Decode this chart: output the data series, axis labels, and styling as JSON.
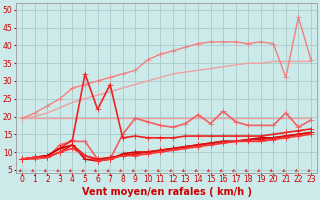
{
  "x": [
    0,
    1,
    2,
    3,
    4,
    5,
    6,
    7,
    8,
    9,
    10,
    11,
    12,
    13,
    14,
    15,
    16,
    17,
    18,
    19,
    20,
    21,
    22,
    23
  ],
  "background_color": "#cdeaea",
  "grid_color": "#aacccc",
  "xlabel": "Vent moyen/en rafales ( km/h )",
  "ylim": [
    4,
    52
  ],
  "yticks": [
    5,
    10,
    15,
    20,
    25,
    30,
    35,
    40,
    45,
    50
  ],
  "lines": [
    {
      "color": "#f0a0a0",
      "lw": 1.0,
      "marker": null,
      "values": [
        19.5,
        19.5,
        19.5,
        19.5,
        19.5,
        19.5,
        19.5,
        19.5,
        19.5,
        19.5,
        19.5,
        19.5,
        19.5,
        19.5,
        19.5,
        19.5,
        19.5,
        19.5,
        19.5,
        19.5,
        19.5,
        19.5,
        19.5,
        19.5
      ]
    },
    {
      "color": "#f0a0a0",
      "lw": 1.0,
      "marker": null,
      "values": [
        19.5,
        20,
        21,
        22.5,
        24,
        25,
        26,
        27,
        28,
        29,
        30,
        31,
        32,
        32.5,
        33,
        33.5,
        34,
        34.5,
        35,
        35,
        35.5,
        35.5,
        35.5,
        35.5
      ]
    },
    {
      "color": "#f08080",
      "lw": 1.0,
      "marker": "+",
      "markersize": 4,
      "values": [
        19.5,
        21,
        23,
        25,
        28,
        29,
        30,
        31,
        32,
        33,
        36,
        37.5,
        38.5,
        39.5,
        40.5,
        41,
        41,
        41,
        40.5,
        41,
        40.5,
        31,
        48,
        36
      ]
    },
    {
      "color": "#f06060",
      "lw": 1.2,
      "marker": "+",
      "markersize": 4,
      "values": [
        8,
        8,
        8.5,
        12,
        13,
        13,
        8,
        8,
        15,
        19.5,
        18.5,
        17.5,
        17,
        18,
        20.5,
        18,
        21.5,
        18.5,
        17.5,
        17.5,
        17.5,
        21,
        17,
        19
      ]
    },
    {
      "color": "#ee2222",
      "lw": 1.2,
      "marker": "+",
      "markersize": 4,
      "values": [
        8,
        8.5,
        9,
        11,
        13.5,
        32,
        22,
        29,
        14,
        14.5,
        14,
        14,
        14,
        14.5,
        14.5,
        14.5,
        14.5,
        14.5,
        14.5,
        14.5,
        15,
        15.5,
        16,
        16.5
      ]
    },
    {
      "color": "#cc0000",
      "lw": 1.2,
      "marker": "+",
      "markersize": 4,
      "values": [
        8,
        8.5,
        9,
        11,
        12,
        8,
        7.5,
        8,
        9.5,
        10,
        10,
        10.5,
        11,
        11.5,
        12,
        12.5,
        13,
        13,
        13.5,
        14,
        14,
        14.5,
        15,
        15.5
      ]
    },
    {
      "color": "#dd1111",
      "lw": 1.2,
      "marker": "+",
      "markersize": 4,
      "values": [
        8,
        8.5,
        8.5,
        10,
        12,
        9,
        8,
        8.5,
        9,
        9.5,
        10,
        10.5,
        11,
        11.5,
        12,
        12.5,
        13,
        13,
        13.5,
        13.5,
        14,
        14.5,
        15,
        15.5
      ]
    },
    {
      "color": "#ff3333",
      "lw": 1.2,
      "marker": "+",
      "markersize": 4,
      "values": [
        8,
        8.5,
        8.5,
        10,
        11,
        9,
        7.5,
        8,
        9,
        9,
        9.5,
        10,
        10.5,
        11,
        11.5,
        12,
        12.5,
        13,
        13,
        13,
        13.5,
        14,
        14.5,
        15
      ]
    }
  ],
  "arrows": {
    "color": "#cc3333",
    "y_data": 4.8,
    "lw": 0.6
  },
  "axis_fontsize": 6,
  "tick_fontsize": 5.5,
  "xlabel_fontsize": 7,
  "xlabel_color": "#cc0000"
}
